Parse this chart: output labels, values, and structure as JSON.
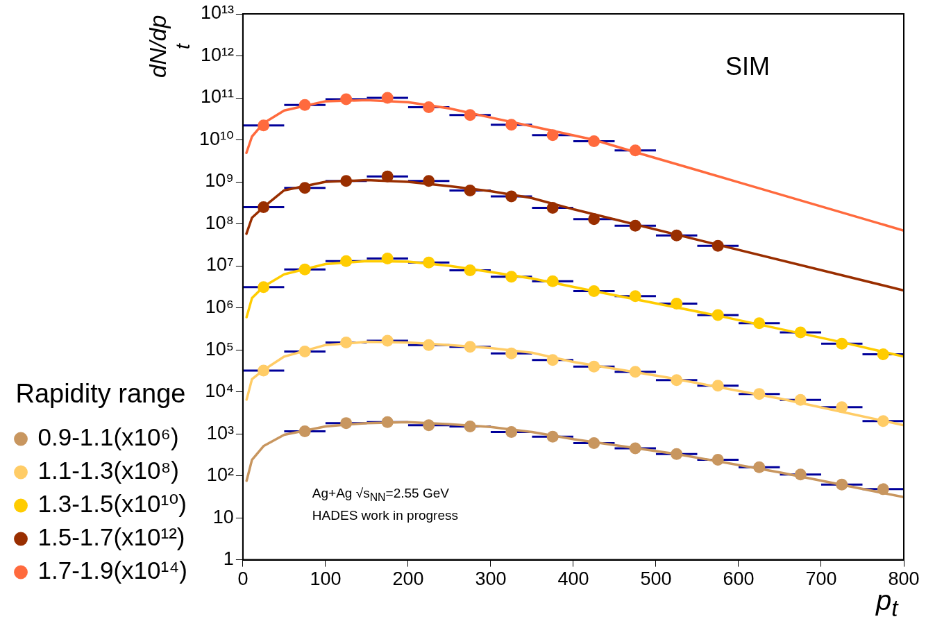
{
  "chart_data": {
    "type": "scatter",
    "xlabel": "p$_{t}$",
    "ylabel": "dN/dp$_{t}$",
    "legend_title": "Rapidity range",
    "legend": "left",
    "log": "y",
    "grid": false,
    "xlim": [
      0,
      800
    ],
    "xticks": [
      0,
      100,
      200,
      300,
      400,
      500,
      600,
      700,
      800
    ],
    "ylim": [
      1,
      10000000000000
    ],
    "yticks": [
      1,
      10,
      {
        "value": 100,
        "label": "10²"
      },
      {
        "value": 1000,
        "label": "10³"
      },
      {
        "value": 10000,
        "label": "10⁴"
      },
      {
        "value": 100000,
        "label": "10⁵"
      },
      {
        "value": 1000000,
        "label": "10⁶"
      },
      {
        "value": 10000000,
        "label": "10⁷"
      },
      {
        "value": 100000000,
        "label": "10⁸"
      },
      {
        "value": 1000000000,
        "label": "10⁹"
      },
      {
        "value": 10000000000,
        "label": "10¹⁰"
      },
      {
        "value": 100000000000,
        "label": "10¹¹"
      },
      {
        "value": 1000000000000,
        "label": "10¹²"
      },
      {
        "value": 10000000000000,
        "label": "10¹³"
      }
    ],
    "annotations": [
      "SIM",
      "Ag+Ag √s$_{NN}$=2.55 GeV",
      "HADES work in progress"
    ],
    "series": [
      {
        "name": "0.9-1.1(x10⁶)",
        "marker": "circle",
        "color": "#c8965f",
        "x": [
          75,
          125,
          175,
          225,
          275,
          325,
          375,
          425,
          475,
          525,
          575,
          625,
          675,
          725,
          775
        ],
        "values": [
          1150,
          1800,
          1900,
          1600,
          1500,
          1100,
          850,
          600,
          450,
          330,
          240,
          160,
          107,
          62,
          48
        ],
        "xerrors": [
          25,
          25,
          25,
          25,
          25,
          25,
          25,
          25,
          25,
          25,
          25,
          25,
          25,
          25,
          25
        ]
      },
      {
        "name": "1.1-1.3(x10⁸)",
        "marker": "circle",
        "color": "#ffcc66",
        "x": [
          25,
          75,
          125,
          175,
          225,
          275,
          325,
          375,
          425,
          475,
          525,
          575,
          625,
          675,
          725,
          775
        ],
        "values": [
          32000,
          91000,
          150000,
          165000,
          130000,
          118000,
          82000,
          57000,
          40000,
          30000,
          19000,
          14000,
          8900,
          6400,
          4300,
          2000
        ],
        "xerrors": [
          25,
          25,
          25,
          25,
          25,
          25,
          25,
          25,
          25,
          25,
          25,
          25,
          25,
          25,
          25,
          25
        ]
      },
      {
        "name": "1.3-1.5(x10¹⁰)",
        "marker": "circle",
        "color": "#ffcc00",
        "x": [
          25,
          75,
          125,
          175,
          225,
          275,
          325,
          375,
          425,
          475,
          525,
          575,
          625,
          675,
          725,
          775
        ],
        "values": [
          3100000,
          8200000,
          13000000,
          15000000,
          12000000,
          7800000,
          5500000,
          4300000,
          2500000,
          1900000,
          1260000,
          670000,
          430000,
          260000,
          140000,
          78000
        ],
        "xerrors": [
          25,
          25,
          25,
          25,
          25,
          25,
          25,
          25,
          25,
          25,
          25,
          25,
          25,
          25,
          25,
          25
        ]
      },
      {
        "name": "1.5-1.7(x10¹²)",
        "marker": "circle",
        "color": "#992e00",
        "x": [
          25,
          75,
          125,
          175,
          225,
          275,
          325,
          375,
          425,
          475,
          525,
          575
        ],
        "values": [
          250000000,
          720000000,
          1050000000,
          1350000000,
          1050000000,
          620000000,
          450000000,
          240000000,
          130000000,
          90000000,
          53000000,
          30000000
        ],
        "xerrors": [
          25,
          25,
          25,
          25,
          25,
          25,
          25,
          25,
          25,
          25,
          25,
          25
        ]
      },
      {
        "name": "1.7-1.9(x10¹⁴)",
        "marker": "circle",
        "color": "#ff6a3d",
        "x": [
          25,
          75,
          125,
          175,
          225,
          275,
          325,
          375,
          425,
          475
        ],
        "values": [
          22000000000,
          68000000000,
          93000000000,
          100000000000,
          60000000000,
          39000000000,
          23000000000,
          13000000000,
          9300000000,
          5600000000
        ],
        "xerrors": [
          25,
          25,
          25,
          25,
          25,
          25,
          25,
          25,
          25,
          25
        ]
      },
      {
        "type": "line",
        "marker": "none",
        "color": "#c8965f",
        "x": [
          4.5,
          11,
          25,
          50,
          100,
          150,
          200,
          250,
          300,
          350,
          401,
          525,
          650,
          800
        ],
        "values": [
          76,
          240,
          510,
          950,
          1500,
          1800,
          1900,
          1700,
          1450,
          1100,
          740,
          330,
          120,
          31
        ]
      },
      {
        "type": "line",
        "marker": "none",
        "color": "#ffcc66",
        "x": [
          4.5,
          11,
          25,
          50,
          100,
          150,
          200,
          250,
          300,
          350,
          401,
          513,
          652,
          800
        ],
        "values": [
          6500,
          20000,
          33000,
          69000,
          130000,
          155000,
          150000,
          130000,
          110000,
          85000,
          51000,
          22000,
          6800,
          1600
        ]
      },
      {
        "type": "line",
        "marker": "none",
        "color": "#ffcc00",
        "x": [
          4.5,
          11,
          25,
          50,
          100,
          150,
          200,
          250,
          300,
          350,
          425,
          575,
          726,
          800
        ],
        "values": [
          600000,
          1700000,
          3200000,
          6300000,
          11000000,
          13000000,
          12600000,
          10000000,
          7100000,
          5000000,
          2500000,
          650000,
          150000,
          69000
        ]
      },
      {
        "type": "line",
        "marker": "none",
        "color": "#992e00",
        "x": [
          4.3,
          11,
          25,
          50,
          100,
          150,
          200,
          250,
          300,
          350,
          401,
          800
        ],
        "values": [
          58000000,
          140000000,
          250000000,
          630000000,
          1000000000,
          1100000000,
          1000000000,
          790000000,
          600000000,
          410000000,
          220000000,
          2600000
        ]
      },
      {
        "type": "line",
        "marker": "none",
        "color": "#ff6a3d",
        "x": [
          4.3,
          11,
          25,
          50,
          100,
          150,
          200,
          250,
          300,
          350,
          425,
          475,
          600,
          800
        ],
        "values": [
          4900000000,
          12000000000,
          25000000000,
          50000000000,
          83000000000,
          88000000000,
          79000000000,
          56000000000,
          34000000000,
          21000000000,
          10000000000,
          5100000000,
          980000000,
          69000000
        ]
      }
    ]
  }
}
